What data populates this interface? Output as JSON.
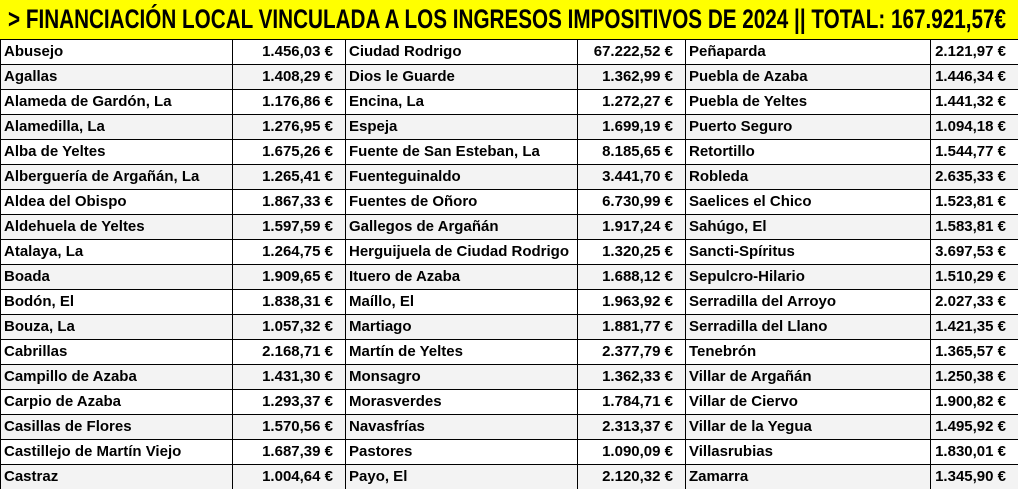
{
  "header": {
    "title": "> FINANCIACIÓN LOCAL VINCULADA A LOS INGRESOS IMPOSITIVOS DE 2024 || TOTAL: 167.921,57€"
  },
  "table": {
    "rows": [
      [
        "Abusejo",
        "1.456,03 €",
        "Ciudad Rodrigo",
        "67.222,52 €",
        "Peñaparda",
        "2.121,97 €"
      ],
      [
        "Agallas",
        "1.408,29 €",
        "Dios le Guarde",
        "1.362,99 €",
        "Puebla de Azaba",
        "1.446,34 €"
      ],
      [
        "Alameda de Gardón, La",
        "1.176,86 €",
        "Encina, La",
        "1.272,27 €",
        "Puebla de Yeltes",
        "1.441,32 €"
      ],
      [
        "Alamedilla, La",
        "1.276,95 €",
        "Espeja",
        "1.699,19 €",
        "Puerto Seguro",
        "1.094,18 €"
      ],
      [
        "Alba de Yeltes",
        "1.675,26 €",
        "Fuente de San Esteban, La",
        "8.185,65 €",
        "Retortillo",
        "1.544,77 €"
      ],
      [
        "Alberguería de Argañán, La",
        "1.265,41 €",
        "Fuenteguinaldo",
        "3.441,70 €",
        "Robleda",
        "2.635,33 €"
      ],
      [
        "Aldea del Obispo",
        "1.867,33 €",
        "Fuentes de Oñoro",
        "6.730,99 €",
        "Saelices el Chico",
        "1.523,81 €"
      ],
      [
        "Aldehuela de Yeltes",
        "1.597,59 €",
        "Gallegos de Argañán",
        "1.917,24 €",
        "Sahúgo, El",
        "1.583,81 €"
      ],
      [
        "Atalaya, La",
        "1.264,75 €",
        "Herguijuela de Ciudad Rodrigo",
        "1.320,25 €",
        "Sancti-Spíritus",
        "3.697,53 €"
      ],
      [
        "Boada",
        "1.909,65 €",
        "Ituero de Azaba",
        "1.688,12 €",
        "Sepulcro-Hilario",
        "1.510,29 €"
      ],
      [
        "Bodón, El",
        "1.838,31 €",
        "Maíllo, El",
        "1.963,92 €",
        "Serradilla del Arroyo",
        "2.027,33 €"
      ],
      [
        "Bouza, La",
        "1.057,32 €",
        "Martiago",
        "1.881,77 €",
        "Serradilla del Llano",
        "1.421,35 €"
      ],
      [
        "Cabrillas",
        "2.168,71 €",
        "Martín de Yeltes",
        "2.377,79 €",
        "Tenebrón",
        "1.365,57 €"
      ],
      [
        "Campillo de Azaba",
        "1.431,30 €",
        "Monsagro",
        "1.362,33 €",
        "Villar de Argañán",
        "1.250,38 €"
      ],
      [
        "Carpio de Azaba",
        "1.293,37 €",
        "Morasverdes",
        "1.784,71 €",
        "Villar de Ciervo",
        "1.900,82 €"
      ],
      [
        "Casillas de Flores",
        "1.570,56 €",
        "Navasfrías",
        "2.313,37 €",
        "Villar de la Yegua",
        "1.495,92 €"
      ],
      [
        "Castillejo de Martín Viejo",
        "1.687,39 €",
        "Pastores",
        "1.090,09 €",
        "Villasrubias",
        "1.830,01 €"
      ],
      [
        "Castraz",
        "1.004,64 €",
        "Payo, El",
        "2.120,32 €",
        "Zamarra",
        "1.345,90 €"
      ]
    ]
  }
}
